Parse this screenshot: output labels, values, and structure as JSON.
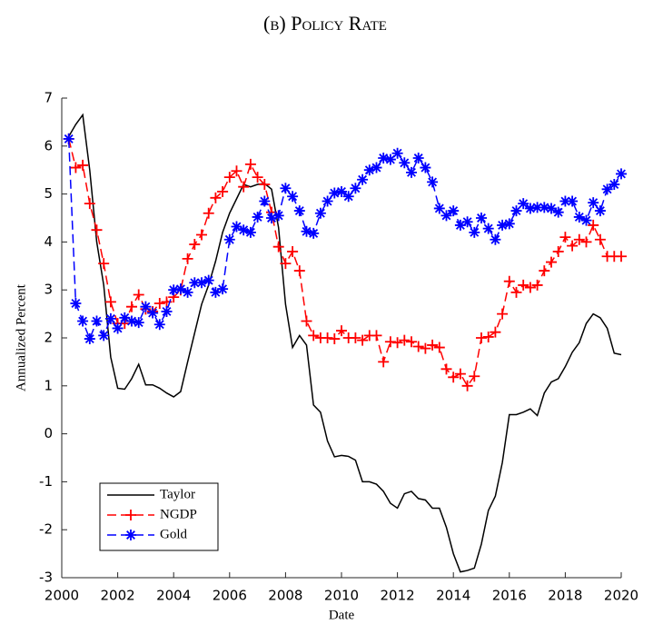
{
  "chart_data": {
    "type": "line",
    "title": "(b) Policy Rate",
    "xlabel": "Date",
    "ylabel": "Annualized Percent",
    "x": [
      2000.25,
      2000.5,
      2000.75,
      2001,
      2001.25,
      2001.5,
      2001.75,
      2002,
      2002.25,
      2002.5,
      2002.75,
      2003,
      2003.25,
      2003.5,
      2003.75,
      2004,
      2004.25,
      2004.5,
      2004.75,
      2005,
      2005.25,
      2005.5,
      2005.75,
      2006,
      2006.25,
      2006.5,
      2006.75,
      2007,
      2007.25,
      2007.5,
      2007.75,
      2008,
      2008.25,
      2008.5,
      2008.75,
      2009,
      2009.25,
      2009.5,
      2009.75,
      2010,
      2010.25,
      2010.5,
      2010.75,
      2011,
      2011.25,
      2011.5,
      2011.75,
      2012,
      2012.25,
      2012.5,
      2012.75,
      2013,
      2013.25,
      2013.5,
      2013.75,
      2014,
      2014.25,
      2014.5,
      2014.75,
      2015,
      2015.25,
      2015.5,
      2015.75,
      2016,
      2016.25,
      2016.5,
      2016.75,
      2017,
      2017.25,
      2017.5,
      2017.75,
      2018,
      2018.25,
      2018.5,
      2018.75,
      2019,
      2019.25,
      2019.5,
      2019.75,
      2020
    ],
    "series": [
      {
        "name": "Taylor",
        "color": "#000000",
        "dash": false,
        "marker": "none",
        "values": [
          6.2,
          6.45,
          6.65,
          5.5,
          4.0,
          3.1,
          1.6,
          0.95,
          0.93,
          1.15,
          1.45,
          1.02,
          1.02,
          0.95,
          0.85,
          0.77,
          0.88,
          1.5,
          2.1,
          2.7,
          3.1,
          3.6,
          4.2,
          4.6,
          4.9,
          5.2,
          5.15,
          5.2,
          5.22,
          5.1,
          4.3,
          2.7,
          1.8,
          2.05,
          1.85,
          0.6,
          0.45,
          -0.15,
          -0.48,
          -0.45,
          -0.47,
          -0.55,
          -1.0,
          -1.0,
          -1.05,
          -1.2,
          -1.45,
          -1.55,
          -1.25,
          -1.2,
          -1.35,
          -1.38,
          -1.55,
          -1.55,
          -1.95,
          -2.5,
          -2.88,
          -2.85,
          -2.8,
          -2.3,
          -1.6,
          -1.3,
          -0.6,
          0.4,
          0.4,
          0.45,
          0.52,
          0.38,
          0.85,
          1.08,
          1.15,
          1.4,
          1.7,
          1.9,
          2.3,
          2.5,
          2.42,
          2.2,
          1.68,
          1.65
        ]
      },
      {
        "name": "NGDP",
        "color": "#ff0000",
        "dash": true,
        "marker": "plus",
        "values": [
          6.15,
          5.55,
          5.6,
          4.8,
          4.25,
          3.55,
          2.75,
          2.3,
          2.3,
          2.65,
          2.9,
          2.6,
          2.55,
          2.72,
          2.75,
          2.85,
          3.0,
          3.65,
          3.95,
          4.15,
          4.6,
          4.92,
          5.05,
          5.35,
          5.48,
          5.15,
          5.62,
          5.35,
          5.2,
          4.62,
          3.9,
          3.55,
          3.8,
          3.4,
          2.35,
          2.05,
          2.0,
          2.0,
          1.98,
          2.15,
          2.0,
          2.0,
          1.95,
          2.05,
          2.05,
          1.5,
          1.92,
          1.9,
          1.95,
          1.92,
          1.82,
          1.78,
          1.85,
          1.8,
          1.35,
          1.18,
          1.25,
          1.0,
          1.2,
          2.0,
          2.02,
          2.12,
          2.5,
          3.18,
          2.95,
          3.1,
          3.05,
          3.1,
          3.4,
          3.58,
          3.8,
          4.1,
          3.92,
          4.05,
          4.0,
          4.35,
          4.05,
          3.7,
          3.7,
          3.7
        ]
      },
      {
        "name": "Gold",
        "color": "#0000ff",
        "dash": true,
        "marker": "asterisk",
        "values": [
          6.15,
          2.72,
          2.35,
          1.98,
          2.35,
          2.05,
          2.4,
          2.2,
          2.42,
          2.35,
          2.32,
          2.65,
          2.52,
          2.28,
          2.55,
          3.0,
          3.02,
          2.95,
          3.15,
          3.15,
          3.2,
          2.95,
          3.02,
          4.05,
          4.32,
          4.25,
          4.2,
          4.52,
          4.85,
          4.5,
          4.55,
          5.12,
          4.95,
          4.65,
          4.22,
          4.18,
          4.6,
          4.85,
          5.02,
          5.05,
          4.95,
          5.12,
          5.3,
          5.5,
          5.55,
          5.75,
          5.72,
          5.85,
          5.65,
          5.45,
          5.75,
          5.55,
          5.25,
          4.7,
          4.55,
          4.65,
          4.35,
          4.42,
          4.2,
          4.5,
          4.28,
          4.05,
          4.35,
          4.38,
          4.65,
          4.8,
          4.7,
          4.72,
          4.72,
          4.7,
          4.62,
          4.85,
          4.85,
          4.52,
          4.45,
          4.82,
          4.65,
          5.1,
          5.2,
          5.42
        ]
      }
    ],
    "xlim": [
      2000,
      2020
    ],
    "xticks": [
      2000,
      2002,
      2004,
      2006,
      2008,
      2010,
      2012,
      2014,
      2016,
      2018,
      2020
    ],
    "ylim": [
      -3,
      7
    ],
    "yticks": [
      -3,
      -2,
      -1,
      0,
      1,
      2,
      3,
      4,
      5,
      6,
      7
    ],
    "grid": false,
    "legend": "lower left"
  }
}
